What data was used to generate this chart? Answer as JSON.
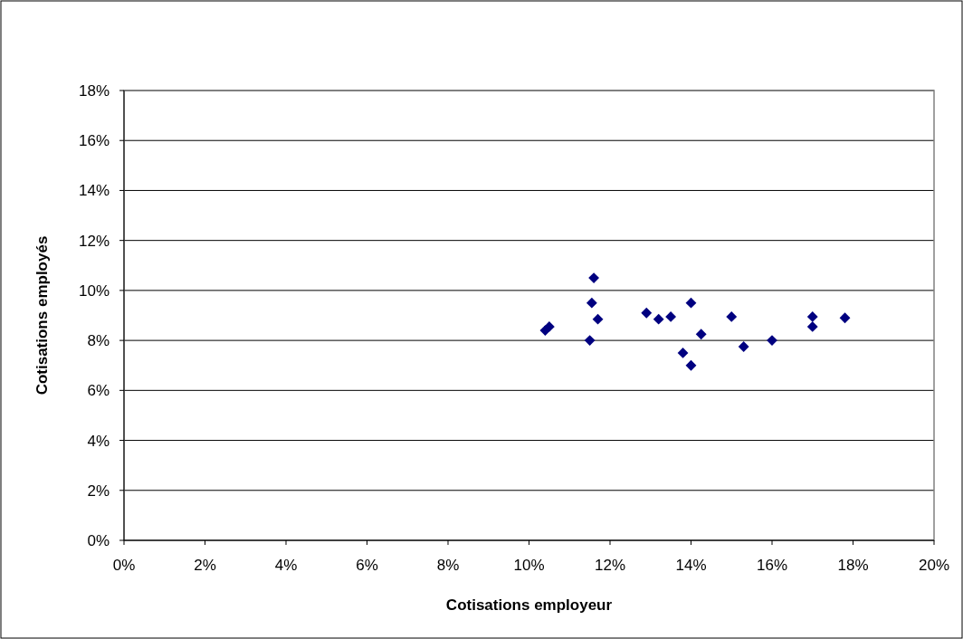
{
  "chart_data": {
    "type": "scatter",
    "xlabel": "Cotisations employeur",
    "ylabel": "Cotisations employés",
    "x": [
      10.4,
      10.5,
      11.6,
      11.55,
      11.7,
      11.5,
      12.9,
      13.2,
      13.5,
      14.0,
      13.8,
      14.0,
      14.25,
      15.0,
      15.3,
      16.0,
      17.0,
      17.0,
      17.8
    ],
    "series": [
      {
        "color": "#000080",
        "values": [
          8.4,
          8.55,
          10.5,
          9.5,
          8.85,
          8.0,
          9.1,
          8.85,
          8.95,
          9.5,
          7.5,
          7.0,
          8.25,
          8.95,
          7.75,
          8.0,
          8.95,
          8.55,
          8.9
        ]
      }
    ],
    "xlim": [
      0,
      20
    ],
    "ylim": [
      0,
      18
    ],
    "xticks": [
      {
        "value": 0,
        "label": "0%"
      },
      {
        "value": 2,
        "label": "2%"
      },
      {
        "value": 4,
        "label": "4%"
      },
      {
        "value": 6,
        "label": "6%"
      },
      {
        "value": 8,
        "label": "8%"
      },
      {
        "value": 10,
        "label": "10%"
      },
      {
        "value": 12,
        "label": "12%"
      },
      {
        "value": 14,
        "label": "14%"
      },
      {
        "value": 16,
        "label": "16%"
      },
      {
        "value": 18,
        "label": "18%"
      },
      {
        "value": 20,
        "label": "20%"
      }
    ],
    "yticks": [
      {
        "value": 0,
        "label": "0%"
      },
      {
        "value": 2,
        "label": "2%"
      },
      {
        "value": 4,
        "label": "4%"
      },
      {
        "value": 6,
        "label": "6%"
      },
      {
        "value": 8,
        "label": "8%"
      },
      {
        "value": 10,
        "label": "10%"
      },
      {
        "value": 12,
        "label": "12%"
      },
      {
        "value": 14,
        "label": "14%"
      },
      {
        "value": 16,
        "label": "16%"
      },
      {
        "value": 18,
        "label": "18%"
      }
    ],
    "grid": "y",
    "marker": "diamond"
  }
}
